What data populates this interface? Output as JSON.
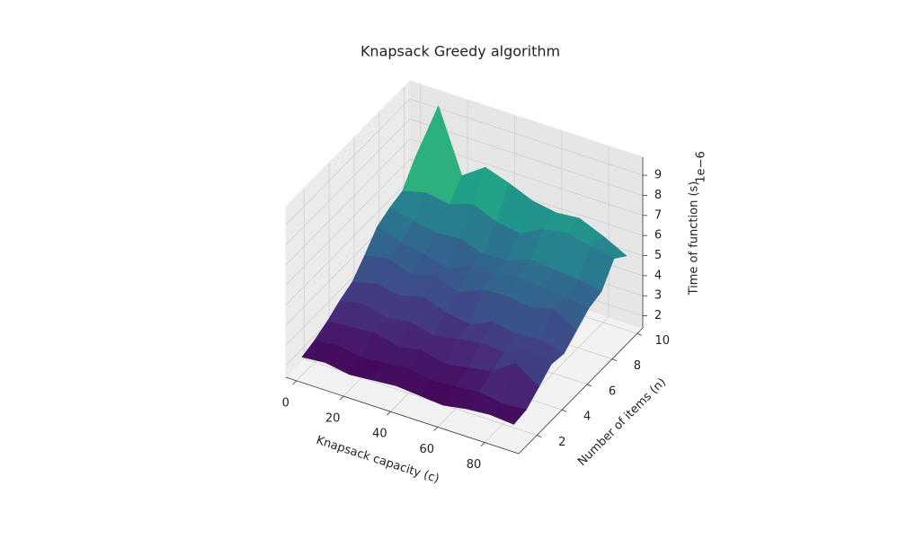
{
  "chart_data": {
    "type": "surface3d",
    "title": "Knapsack Greedy algorithm",
    "xlabel": "Knapsack capacity (c)",
    "ylabel": "Number of items (n)",
    "zlabel": "Time of function (s)",
    "z_offset_label": "1e−6",
    "colormap": "viridis",
    "x": [
      0,
      10,
      20,
      30,
      40,
      50,
      60,
      70,
      80,
      90
    ],
    "y": [
      1,
      2,
      3,
      4,
      5,
      6,
      7,
      8,
      9,
      10
    ],
    "z": [
      [
        2.3,
        2.4,
        2.2,
        2.3,
        2.4,
        2.3,
        2.2,
        2.4,
        2.5,
        2.4
      ],
      [
        2.5,
        2.6,
        2.4,
        2.5,
        2.6,
        2.4,
        2.5,
        2.6,
        2.4,
        2.5
      ],
      [
        2.8,
        2.9,
        3.0,
        2.7,
        2.9,
        2.6,
        2.8,
        3.0,
        3.8,
        3.0
      ],
      [
        3.2,
        3.4,
        3.1,
        3.3,
        3.0,
        3.2,
        3.4,
        3.3,
        3.9,
        3.5
      ],
      [
        3.5,
        3.8,
        3.6,
        3.9,
        3.5,
        3.3,
        3.8,
        3.6,
        3.7,
        3.4
      ],
      [
        4.2,
        4.4,
        4.0,
        4.3,
        3.9,
        4.4,
        4.5,
        4.3,
        4.6,
        3.9
      ],
      [
        5.0,
        4.6,
        4.4,
        4.0,
        4.6,
        4.5,
        4.8,
        4.7,
        4.5,
        4.4
      ],
      [
        5.3,
        5.0,
        4.8,
        4.9,
        4.5,
        4.6,
        5.0,
        4.9,
        4.8,
        4.6
      ],
      [
        5.5,
        5.8,
        5.6,
        6.0,
        5.5,
        5.3,
        5.9,
        6.1,
        5.8,
        5.6
      ],
      [
        6.5,
        9.5,
        6.4,
        7.2,
        6.8,
        6.3,
        6.1,
        6.2,
        5.7,
        5.1
      ]
    ],
    "xlim": [
      -4.5,
      94.5
    ],
    "ylim": [
      0.55,
      10.45
    ],
    "zlim": [
      1.4,
      9.9
    ],
    "xticks": [
      0,
      20,
      40,
      60,
      80
    ],
    "yticks": [
      2,
      4,
      6,
      8,
      10
    ],
    "zticks": [
      2,
      3,
      4,
      5,
      6,
      7,
      8,
      9
    ],
    "grid": true
  }
}
